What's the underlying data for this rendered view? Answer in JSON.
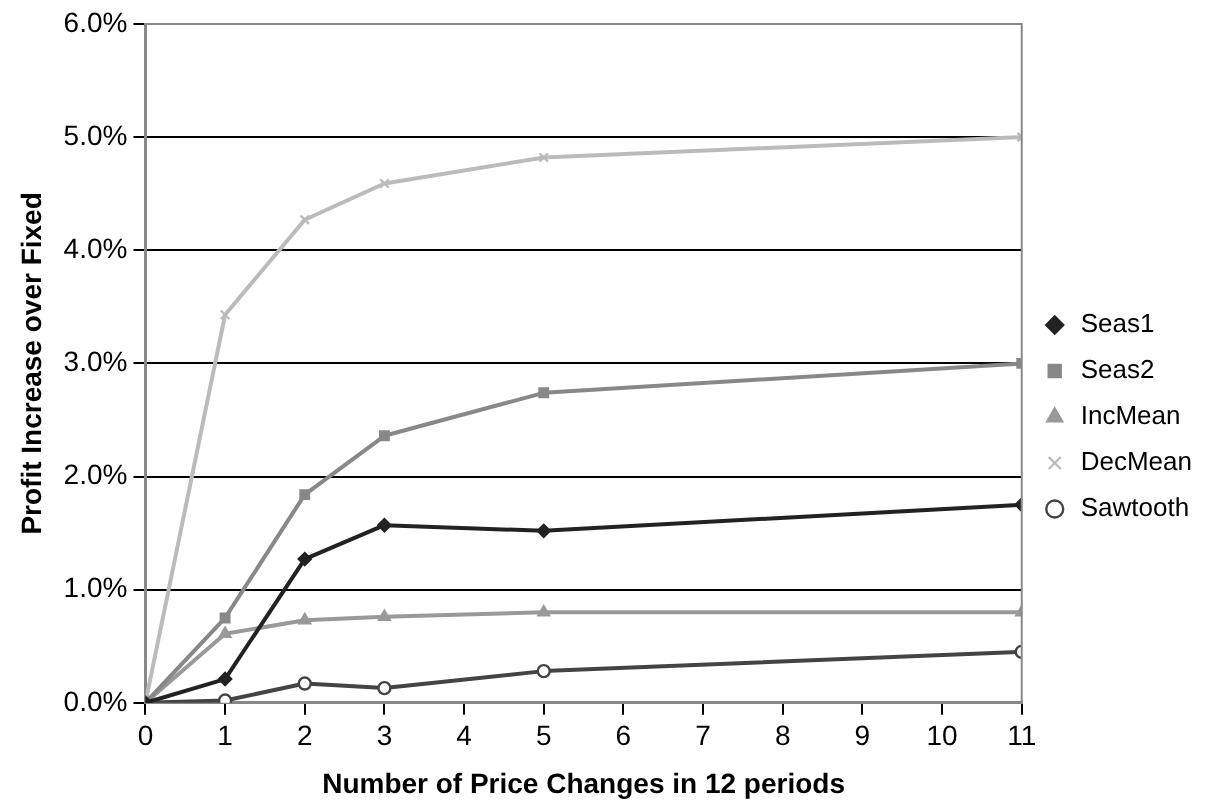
{
  "chart_data": {
    "type": "line",
    "xlabel": "Number of Price Changes in 12 periods",
    "ylabel": "Profit Increase over Fixed",
    "x": [
      0,
      1,
      2,
      3,
      5,
      11
    ],
    "xlim": [
      0,
      11
    ],
    "xticks": [
      0,
      1,
      2,
      3,
      4,
      5,
      6,
      7,
      8,
      9,
      10,
      11
    ],
    "ylim": [
      0,
      6
    ],
    "yticks": [
      {
        "value": 0,
        "label": "0.0%"
      },
      {
        "value": 1,
        "label": "1.0%"
      },
      {
        "value": 2,
        "label": "2.0%"
      },
      {
        "value": 3,
        "label": "3.0%"
      },
      {
        "value": 4,
        "label": "4.0%"
      },
      {
        "value": 5,
        "label": "5.0%"
      },
      {
        "value": 6,
        "label": "6.0%"
      }
    ],
    "grid": "y",
    "legend": "right",
    "line_style": "solid",
    "series": [
      {
        "name": "Seas1",
        "color": "#222222",
        "marker": "diamond",
        "values": [
          0,
          0.21,
          1.27,
          1.57,
          1.52,
          1.75
        ]
      },
      {
        "name": "Seas2",
        "color": "#888888",
        "marker": "square",
        "values": [
          0,
          0.75,
          1.84,
          2.36,
          2.74,
          3.0
        ]
      },
      {
        "name": "IncMean",
        "color": "#999999",
        "marker": "triangle",
        "values": [
          0,
          0.61,
          0.73,
          0.76,
          0.8,
          0.8
        ]
      },
      {
        "name": "DecMean",
        "color": "#bbbbbb",
        "marker": "cross",
        "values": [
          0,
          3.43,
          4.27,
          4.59,
          4.82,
          5.0
        ]
      },
      {
        "name": "Sawtooth",
        "color": "#444444",
        "marker": "circle",
        "values": [
          0,
          0.02,
          0.17,
          0.13,
          0.28,
          0.45
        ]
      }
    ]
  }
}
